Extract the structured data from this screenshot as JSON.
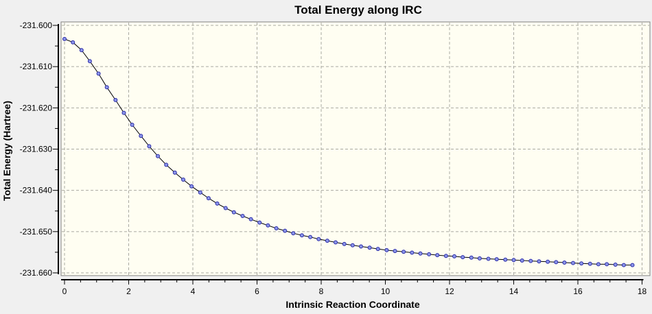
{
  "window": {
    "background": "#F0F0F0"
  },
  "chart_data": {
    "type": "line",
    "title": "Total Energy along IRC",
    "xlabel": "Intrinsic Reaction Coordinate",
    "ylabel": "Total Energy (Hartree)",
    "xlim": [
      0,
      18
    ],
    "ylim": [
      -231.66,
      -231.6
    ],
    "x_major_ticks": [
      0,
      2,
      4,
      6,
      8,
      10,
      12,
      14,
      16,
      18
    ],
    "x_minor_step": 0.5,
    "y_major_ticks": [
      -231.6,
      -231.61,
      -231.62,
      -231.63,
      -231.64,
      -231.65,
      -231.66
    ],
    "y_minor_step": 0.005,
    "y_tick_decimals": 3,
    "grid": "dashed-major",
    "legend_position": "none",
    "colors": {
      "window_bg": "#F0F0F0",
      "plot_bg": "#FFFEF2",
      "frame": "#808080",
      "grid": "#A9A9A1",
      "axis": "#000000",
      "line": "#000000",
      "marker_fill": "#8B95E8",
      "marker_stroke": "#2B2BA8",
      "text": "#000000"
    },
    "series": [
      {
        "name": "Total Energy",
        "marker": "circle",
        "points": [
          [
            0.0,
            -231.6033
          ],
          [
            0.26,
            -231.6041
          ],
          [
            0.53,
            -231.606
          ],
          [
            0.79,
            -231.6087
          ],
          [
            1.06,
            -231.6117
          ],
          [
            1.32,
            -231.615
          ],
          [
            1.59,
            -231.6181
          ],
          [
            1.85,
            -231.6212
          ],
          [
            2.11,
            -231.6241
          ],
          [
            2.38,
            -231.6268
          ],
          [
            2.64,
            -231.6293
          ],
          [
            2.91,
            -231.6317
          ],
          [
            3.17,
            -231.6338
          ],
          [
            3.44,
            -231.6357
          ],
          [
            3.7,
            -231.6374
          ],
          [
            3.96,
            -231.639
          ],
          [
            4.23,
            -231.6405
          ],
          [
            4.49,
            -231.6419
          ],
          [
            4.76,
            -231.6432
          ],
          [
            5.02,
            -231.6443
          ],
          [
            5.28,
            -231.6453
          ],
          [
            5.55,
            -231.6462
          ],
          [
            5.81,
            -231.647
          ],
          [
            6.08,
            -231.6478
          ],
          [
            6.34,
            -231.6485
          ],
          [
            6.6,
            -231.6492
          ],
          [
            6.87,
            -231.6498
          ],
          [
            7.13,
            -231.6504
          ],
          [
            7.4,
            -231.6509
          ],
          [
            7.66,
            -231.6513
          ],
          [
            7.92,
            -231.6518
          ],
          [
            8.19,
            -231.6522
          ],
          [
            8.45,
            -231.6526
          ],
          [
            8.72,
            -231.653
          ],
          [
            8.98,
            -231.6533
          ],
          [
            9.24,
            -231.6536
          ],
          [
            9.51,
            -231.6539
          ],
          [
            9.77,
            -231.6542
          ],
          [
            10.04,
            -231.6545
          ],
          [
            10.3,
            -231.6547
          ],
          [
            10.57,
            -231.6549
          ],
          [
            10.83,
            -231.6551
          ],
          [
            11.09,
            -231.6553
          ],
          [
            11.36,
            -231.6555
          ],
          [
            11.62,
            -231.6557
          ],
          [
            11.89,
            -231.6559
          ],
          [
            12.15,
            -231.656
          ],
          [
            12.41,
            -231.6562
          ],
          [
            12.68,
            -231.6563
          ],
          [
            12.94,
            -231.6565
          ],
          [
            13.21,
            -231.6566
          ],
          [
            13.47,
            -231.6567
          ],
          [
            13.74,
            -231.6568
          ],
          [
            14.0,
            -231.6569
          ],
          [
            14.26,
            -231.657
          ],
          [
            14.53,
            -231.6571
          ],
          [
            14.79,
            -231.6572
          ],
          [
            15.06,
            -231.6573
          ],
          [
            15.32,
            -231.6574
          ],
          [
            15.58,
            -231.6575
          ],
          [
            15.85,
            -231.6576
          ],
          [
            16.11,
            -231.6577
          ],
          [
            16.38,
            -231.6578
          ],
          [
            16.64,
            -231.6579
          ],
          [
            16.9,
            -231.6579
          ],
          [
            17.17,
            -231.658
          ],
          [
            17.43,
            -231.6581
          ],
          [
            17.7,
            -231.6581
          ]
        ]
      }
    ]
  }
}
